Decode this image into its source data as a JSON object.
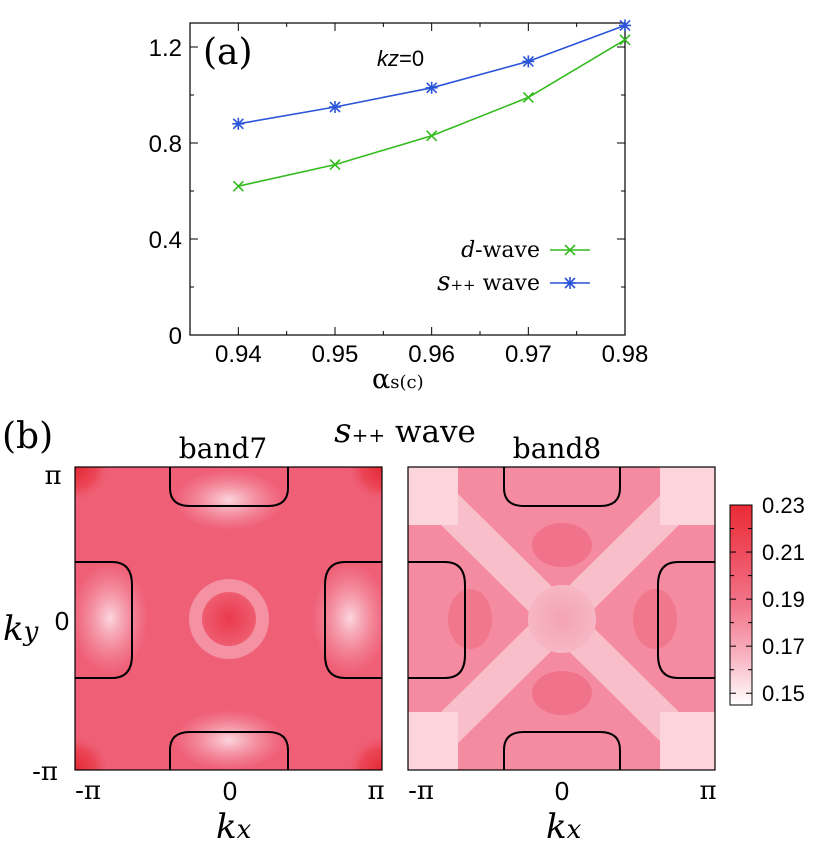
{
  "chart_data": [
    {
      "panel": "(a)",
      "type": "line",
      "annotation": "kz=0",
      "annotation_parts": [
        "kz",
        "=0"
      ],
      "xlabel": "αs(c)",
      "xlabel_parts": [
        "α",
        "s(c)"
      ],
      "ylabel": "",
      "x": [
        0.94,
        0.95,
        0.96,
        0.97,
        0.98
      ],
      "xlim": [
        0.935,
        0.98
      ],
      "ylim": [
        0,
        1.3
      ],
      "xticks": [
        "0.94",
        "0.95",
        "0.96",
        "0.97",
        "0.98"
      ],
      "xtick_values": [
        0.94,
        0.95,
        0.96,
        0.97,
        0.98
      ],
      "yticks": [
        "0",
        "0.4",
        "0.8",
        "1.2"
      ],
      "ytick_values": [
        0,
        0.4,
        0.8,
        1.2
      ],
      "grid": false,
      "legend_position": "lower-right",
      "series": [
        {
          "name": "d-wave",
          "name_parts": [
            "d",
            "-wave"
          ],
          "color": "#33bb1e",
          "marker": "x",
          "values": [
            0.62,
            0.71,
            0.83,
            0.99,
            1.23
          ]
        },
        {
          "name": "s++ wave",
          "name_parts": [
            "s",
            "++",
            " wave"
          ],
          "color": "#2a54d9",
          "marker": "asterisk",
          "values": [
            0.88,
            0.95,
            1.03,
            1.14,
            1.29
          ]
        }
      ]
    },
    {
      "panel": "(b)",
      "type": "heatmap",
      "title": "s++ wave",
      "title_parts": [
        "s",
        "++",
        " wave"
      ],
      "subplots": [
        {
          "title": "band7"
        },
        {
          "title": "band8"
        }
      ],
      "xlabel": "kx",
      "xlabel_parts": [
        "k",
        "x"
      ],
      "ylabel": "ky",
      "ylabel_parts": [
        "k",
        "y"
      ],
      "xticks": [
        "-π",
        "0",
        "π"
      ],
      "yticks": [
        "-π",
        "0",
        "π"
      ],
      "colorbar": {
        "ticks": [
          "0.23",
          "0.21",
          "0.19",
          "0.17",
          "0.15"
        ],
        "tick_values": [
          0.23,
          0.21,
          0.19,
          0.17,
          0.15
        ],
        "min": 0.145,
        "max": 0.23,
        "color_high": "#ea2b35",
        "color_low": "#ffffff"
      }
    }
  ]
}
